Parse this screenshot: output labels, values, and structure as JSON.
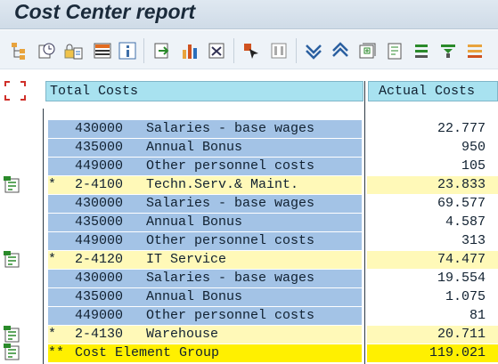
{
  "window": {
    "title": "Cost Center report"
  },
  "toolbar": {
    "buttons": [
      {
        "icon": "hierarchy-icon"
      },
      {
        "icon": "clock-settings-icon"
      },
      {
        "icon": "lock-settings-icon"
      },
      {
        "icon": "layout-grid-icon"
      },
      {
        "icon": "info-icon"
      },
      {
        "icon": "export-icon"
      },
      {
        "icon": "chart-icon"
      },
      {
        "icon": "print-icon"
      },
      {
        "icon": "select-cursor-icon"
      },
      {
        "icon": "columns-icon"
      },
      {
        "icon": "expand-down-icon"
      },
      {
        "icon": "collapse-up-icon"
      },
      {
        "icon": "expand-node-icon"
      },
      {
        "icon": "collapse-node-icon"
      },
      {
        "icon": "sort-ascending-icon"
      },
      {
        "icon": "filter-icon"
      },
      {
        "icon": "sum-icon"
      }
    ]
  },
  "report": {
    "header": {
      "col1": "Total Costs",
      "col2": "Actual Costs"
    },
    "rows": [
      {
        "type": "item",
        "marker": "",
        "code": "430000",
        "desc": "Salaries - base wages",
        "value": "22.777"
      },
      {
        "type": "item",
        "marker": "",
        "code": "435000",
        "desc": "Annual Bonus",
        "value": "950"
      },
      {
        "type": "item",
        "marker": "",
        "code": "449000",
        "desc": "Other personnel costs",
        "value": "105"
      },
      {
        "type": "sub",
        "marker": "*",
        "code": "2-4100",
        "desc": "Techn.Serv.& Maint.",
        "value": "23.833"
      },
      {
        "type": "item",
        "marker": "",
        "code": "430000",
        "desc": "Salaries - base wages",
        "value": "69.577"
      },
      {
        "type": "item",
        "marker": "",
        "code": "435000",
        "desc": "Annual Bonus",
        "value": "4.587"
      },
      {
        "type": "item",
        "marker": "",
        "code": "449000",
        "desc": "Other personnel costs",
        "value": "313"
      },
      {
        "type": "sub",
        "marker": "*",
        "code": "2-4120",
        "desc": "IT Service",
        "value": "74.477"
      },
      {
        "type": "item",
        "marker": "",
        "code": "430000",
        "desc": "Salaries - base wages",
        "value": "19.554"
      },
      {
        "type": "item",
        "marker": "",
        "code": "435000",
        "desc": "Annual Bonus",
        "value": "1.075"
      },
      {
        "type": "item",
        "marker": "",
        "code": "449000",
        "desc": "Other personnel costs",
        "value": "81"
      },
      {
        "type": "sub",
        "marker": "*",
        "code": "2-4130",
        "desc": "Warehouse",
        "value": "20.711"
      },
      {
        "type": "total",
        "marker": "**",
        "code": "Cost Element Group",
        "desc": "",
        "value": "119.021"
      }
    ]
  },
  "colors": {
    "item_bg": "#a3c3e6",
    "subtotal_bg": "#fff9b8",
    "total_bg": "#fff000",
    "header_bg": "#a8e2f0"
  }
}
